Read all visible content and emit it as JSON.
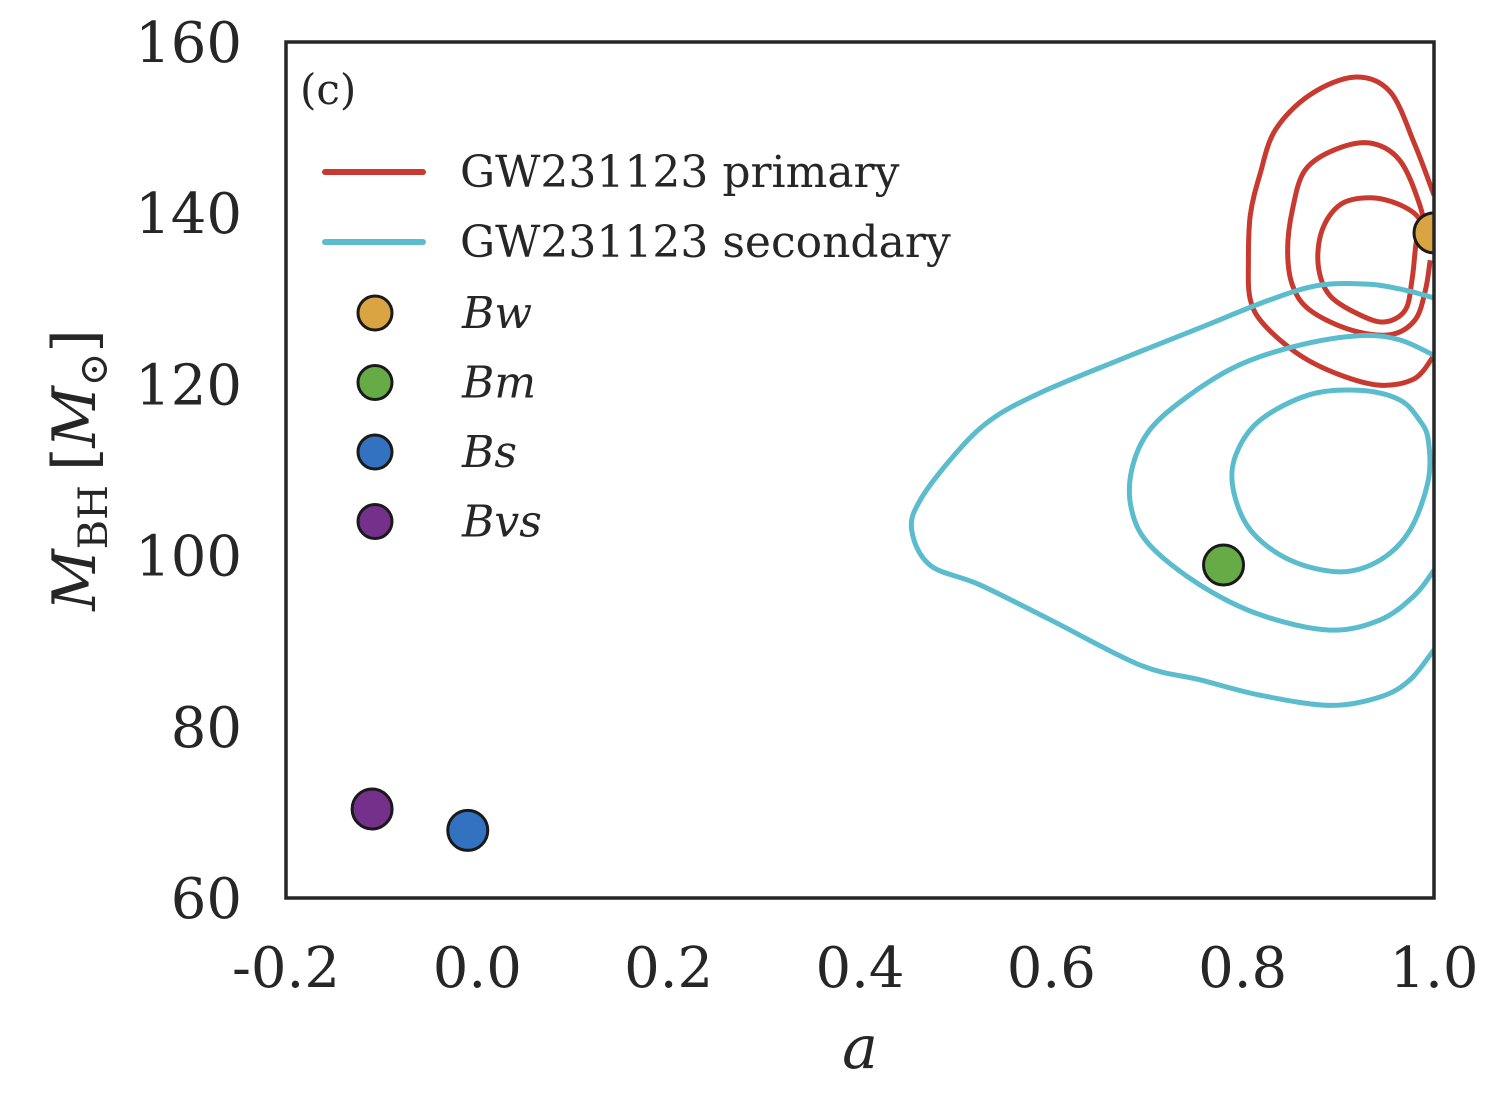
{
  "chart_data": {
    "type": "scatter",
    "panel_label": "(c)",
    "xlabel": "a",
    "ylabel": {
      "symbol": "M",
      "sub": "BH",
      "unit_symbol": "M",
      "unit_sub": "⊙"
    },
    "xlim": [
      -0.2,
      1.0
    ],
    "ylim": [
      60,
      160
    ],
    "xticks": [
      "-0.2",
      "0.0",
      "0.2",
      "0.4",
      "0.6",
      "0.8",
      "1.0"
    ],
    "yticks": [
      "60",
      "80",
      "100",
      "120",
      "140",
      "160"
    ],
    "grid": false,
    "legend_position": "top-left",
    "contours": [
      {
        "name": "GW231123 primary",
        "color": "#c8392f",
        "levels": [
          {
            "closed": false,
            "points": [
              [
                1.0,
                142.1
              ],
              [
                0.98,
                148.0
              ],
              [
                0.954,
                154.2
              ],
              [
                0.917,
                155.9
              ],
              [
                0.87,
                153.8
              ],
              [
                0.834,
                149.7
              ],
              [
                0.818,
                144.5
              ],
              [
                0.808,
                139.8
              ],
              [
                0.806,
                134.5
              ],
              [
                0.808,
                129.9
              ],
              [
                0.823,
                126.9
              ],
              [
                0.86,
                123.4
              ],
              [
                0.902,
                121.1
              ],
              [
                0.944,
                119.9
              ],
              [
                0.98,
                120.7
              ],
              [
                1.0,
                123.4
              ]
            ]
          },
          {
            "closed": false,
            "points": [
              [
                0.996,
                135.7
              ],
              [
                0.985,
                141.0
              ],
              [
                0.964,
                146.2
              ],
              [
                0.933,
                148.2
              ],
              [
                0.896,
                147.4
              ],
              [
                0.865,
                145.0
              ],
              [
                0.852,
                140.4
              ],
              [
                0.847,
                135.7
              ],
              [
                0.852,
                131.6
              ],
              [
                0.87,
                128.7
              ],
              [
                0.912,
                126.4
              ],
              [
                0.954,
                125.8
              ],
              [
                0.98,
                127.5
              ],
              [
                0.991,
                131.0
              ],
              [
                0.996,
                134.5
              ]
            ]
          },
          {
            "closed": true,
            "points": [
              [
                0.985,
                139.2
              ],
              [
                0.964,
                141.0
              ],
              [
                0.933,
                141.8
              ],
              [
                0.902,
                141.0
              ],
              [
                0.883,
                138.0
              ],
              [
                0.879,
                133.9
              ],
              [
                0.891,
                130.4
              ],
              [
                0.923,
                128.1
              ],
              [
                0.949,
                127.3
              ],
              [
                0.97,
                128.7
              ],
              [
                0.977,
                132.2
              ],
              [
                0.981,
                136.3
              ]
            ]
          }
        ]
      },
      {
        "name": "GW231123 secondary",
        "color": "#5bbccd",
        "levels": [
          {
            "closed": false,
            "points": [
              [
                1.0,
                130.1
              ],
              [
                0.97,
                131.0
              ],
              [
                0.933,
                131.7
              ],
              [
                0.881,
                131.6
              ],
              [
                0.829,
                129.9
              ],
              [
                0.755,
                126.6
              ],
              [
                0.672,
                122.9
              ],
              [
                0.588,
                119.0
              ],
              [
                0.536,
                115.8
              ],
              [
                0.499,
                111.8
              ],
              [
                0.463,
                106.5
              ],
              [
                0.454,
                103.0
              ],
              [
                0.473,
                98.9
              ],
              [
                0.525,
                96.6
              ],
              [
                0.599,
                92.5
              ],
              [
                0.693,
                87.2
              ],
              [
                0.755,
                85.5
              ],
              [
                0.818,
                83.7
              ],
              [
                0.891,
                82.5
              ],
              [
                0.944,
                83.5
              ],
              [
                0.975,
                85.5
              ],
              [
                1.0,
                89.0
              ]
            ]
          },
          {
            "closed": false,
            "points": [
              [
                1.0,
                123.4
              ],
              [
                0.964,
                125.2
              ],
              [
                0.923,
                125.7
              ],
              [
                0.86,
                124.6
              ],
              [
                0.797,
                122.3
              ],
              [
                0.745,
                118.8
              ],
              [
                0.703,
                114.7
              ],
              [
                0.684,
                110.0
              ],
              [
                0.684,
                105.3
              ],
              [
                0.703,
                101.2
              ],
              [
                0.755,
                96.6
              ],
              [
                0.818,
                93.1
              ],
              [
                0.891,
                91.3
              ],
              [
                0.944,
                92.5
              ],
              [
                0.98,
                95.4
              ],
              [
                1.0,
                98.3
              ]
            ]
          },
          {
            "closed": true,
            "points": [
              [
                0.985,
                115.8
              ],
              [
                0.964,
                118.2
              ],
              [
                0.923,
                119.3
              ],
              [
                0.87,
                118.8
              ],
              [
                0.818,
                115.8
              ],
              [
                0.793,
                111.8
              ],
              [
                0.79,
                107.8
              ],
              [
                0.808,
                103.0
              ],
              [
                0.849,
                99.5
              ],
              [
                0.902,
                98.1
              ],
              [
                0.944,
                99.5
              ],
              [
                0.975,
                103.0
              ],
              [
                0.994,
                108.8
              ],
              [
                0.994,
                113.5
              ]
            ]
          }
        ]
      }
    ],
    "points": [
      {
        "name": "Bw",
        "x": 1.0,
        "y": 137.7,
        "color": "#d9a441"
      },
      {
        "name": "Bm",
        "x": 0.78,
        "y": 98.9,
        "color": "#66ab45"
      },
      {
        "name": "Bs",
        "x": -0.01,
        "y": 67.9,
        "color": "#3272c0"
      },
      {
        "name": "Bvs",
        "x": -0.11,
        "y": 70.4,
        "color": "#74308a"
      }
    ]
  }
}
